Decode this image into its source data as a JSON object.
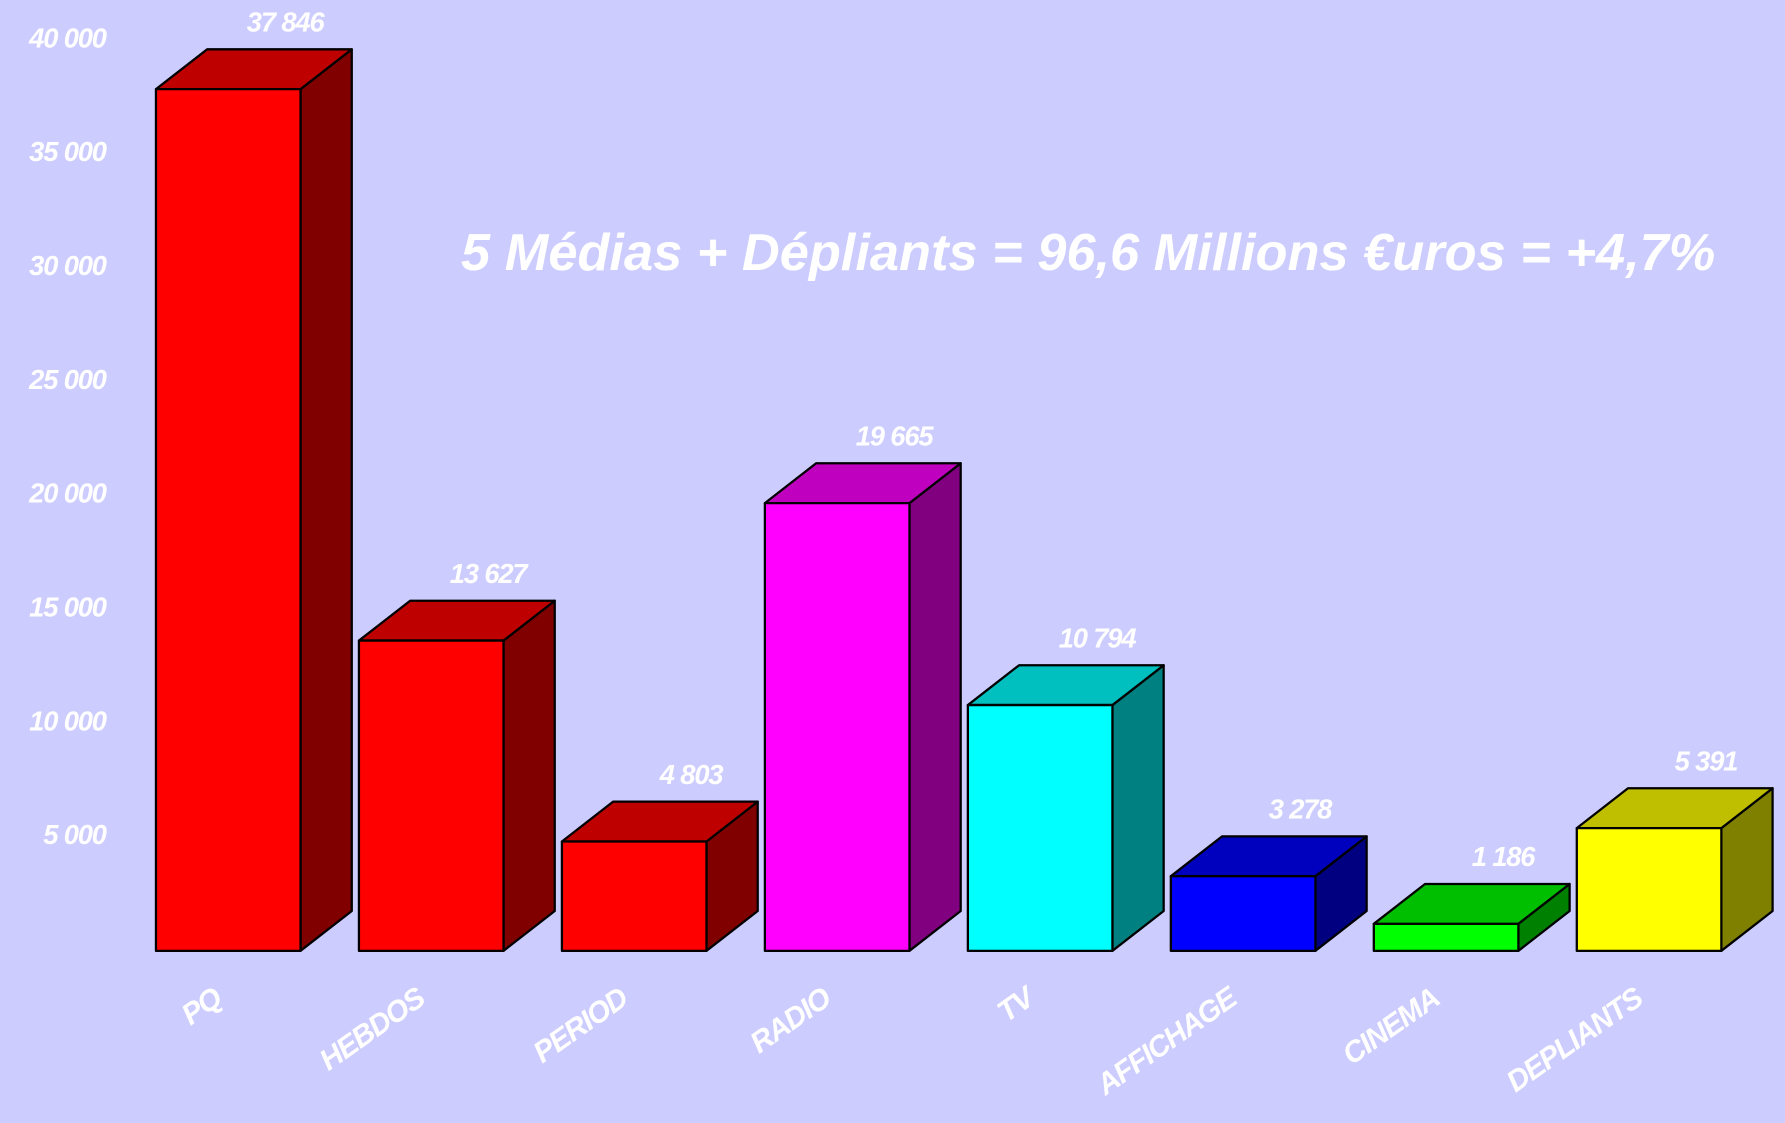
{
  "chart_data": {
    "type": "bar3d",
    "annotation": "5 Médias + Dépliants = 96,6 Millions €uros = +4,7%",
    "categories": [
      "PQ",
      "HEBDOS",
      "PERIOD",
      "RADIO",
      "TV",
      "AFFICHAGE",
      "CINEMA",
      "DEPLIANTS"
    ],
    "values": [
      37846,
      13627,
      4803,
      19665,
      10794,
      3278,
      1186,
      5391
    ],
    "value_labels": [
      "37 846",
      "13 627",
      "4 803",
      "19 665",
      "10 794",
      "3 278",
      "1 186",
      "5 391"
    ],
    "colors": [
      "#ff0000",
      "#ff0000",
      "#ff0000",
      "#ff00ff",
      "#00ffff",
      "#0000ff",
      "#00ff00",
      "#ffff00"
    ],
    "ylim": [
      0,
      40000
    ],
    "yticks": [
      {
        "value": 5000,
        "label": "5 000"
      },
      {
        "value": 10000,
        "label": "10 000"
      },
      {
        "value": 15000,
        "label": "15 000"
      },
      {
        "value": 20000,
        "label": "20 000"
      },
      {
        "value": 25000,
        "label": "25 000"
      },
      {
        "value": 30000,
        "label": "30 000"
      },
      {
        "value": 35000,
        "label": "35 000"
      },
      {
        "value": 40000,
        "label": "40 000"
      }
    ]
  }
}
